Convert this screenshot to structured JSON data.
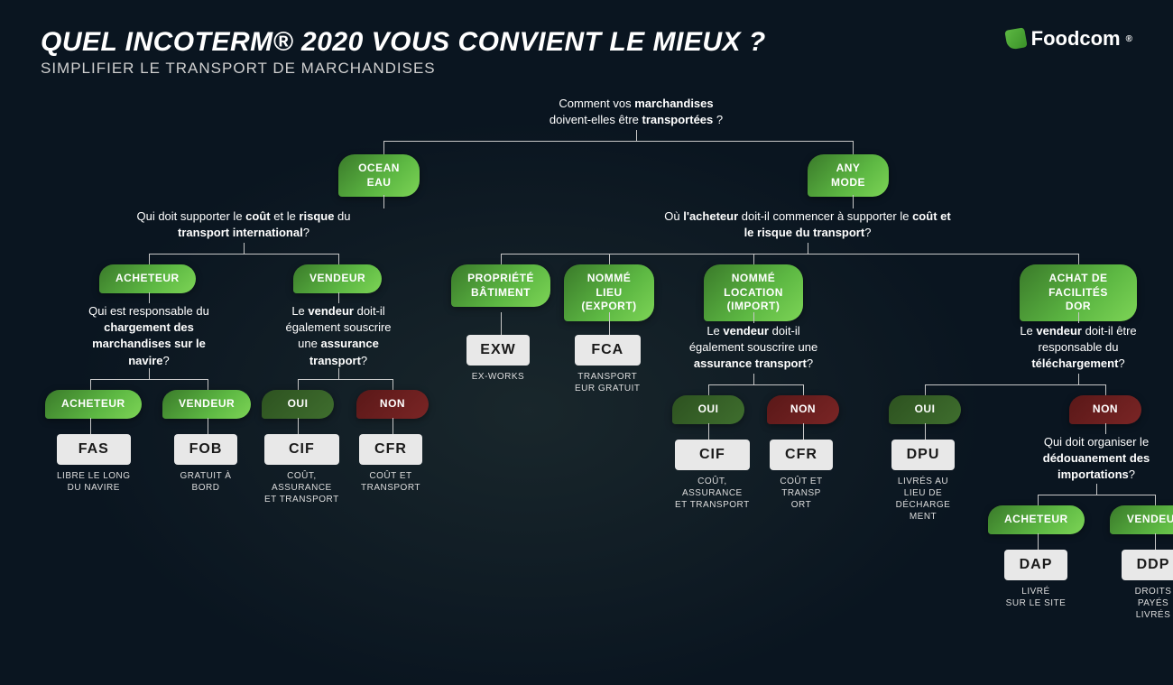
{
  "title": "QUEL INCOTERM® 2020 VOUS CONVIENT LE MIEUX ?",
  "subtitle": "SIMPLIFIER LE TRANSPORT DE MARCHANDISES",
  "logo": "Foodcom",
  "colors": {
    "green_grad": "#5db843",
    "darkgreen": "#3f6e2e",
    "red": "#7a2525",
    "result_bg": "#e8e8e8",
    "bg": "#0a1520",
    "line": "#c8c8c8"
  },
  "q_root": "Comment vos <b>marchandises</b><br>doivent-elles être <b>transportées</b> ?",
  "b_ocean": "OCEAN<br>EAU",
  "b_any": "ANY<br>MODE",
  "q_ocean": "Qui doit supporter le <b>coût</b> et le <b>risque</b> du<br><b>transport international</b>?",
  "q_any": "Où <b>l'acheteur</b> doit-il commencer à supporter le <b>coût et<br>le risque du transport</b>?",
  "b_ach1": "ACHETEUR",
  "b_ven1": "VENDEUR",
  "b_prop": "PROPRIÉTÉ<br>BÂTIMENT",
  "b_nom_exp": "NOMMÉ<br>LIEU<br>(EXPORT)",
  "b_nom_imp": "NOMMÉ<br>LOCATION<br>(IMPORT)",
  "b_achat": "ACHAT DE<br>FACILITÉS<br>DOR",
  "q_charge": "Qui est responsable du<br><b>chargement des<br>marchandises sur le<br>navire</b>?",
  "q_assur1": "Le <b>vendeur</b> doit-il<br>également souscrire<br>une <b>assurance<br>transport</b>?",
  "q_assur2": "Le <b>vendeur</b> doit-il<br>également souscrire une<br><b>assurance transport</b>?",
  "q_tele": "Le <b>vendeur</b> doit-il être<br>responsable du<br><b>téléchargement</b>?",
  "q_dedou": "Qui doit organiser le<br><b>dédouanement des<br>importations</b>?",
  "b_ach2": "ACHETEUR",
  "b_ven2": "VENDEUR",
  "b_oui": "OUI",
  "b_non": "NON",
  "r_fas": "FAS",
  "d_fas": "LIBRE LE LONG<br>DU NAVIRE",
  "r_fob": "FOB",
  "d_fob": "GRATUIT À<br>BORD",
  "r_cif": "CIF",
  "d_cif": "COÛT,<br>ASSURANCE<br>ET TRANSPORT",
  "r_cfr": "CFR",
  "d_cfr": "COÛT ET<br>TRANSPORT",
  "r_exw": "EXW",
  "d_exw": "EX-WORKS",
  "r_fca": "FCA",
  "d_fca": "TRANSPORT<br>EUR GRATUIT",
  "r_cif2": "CIF",
  "d_cif2": "COÛT,<br>ASSURANCE<br>ET TRANSPORT",
  "r_cfr2": "CFR",
  "d_cfr2": "COÛT ET<br>TRANSP<br>ORT",
  "r_dpu": "DPU",
  "d_dpu": "LIVRÉS AU<br>LIEU DE<br>DÉCHARGE<br>MENT",
  "r_dap": "DAP",
  "d_dap": "LIVRÉ<br>SUR LE SITE",
  "r_ddp": "DDP",
  "d_ddp": "DROITS PAYÉS<br>LIVRÉS"
}
